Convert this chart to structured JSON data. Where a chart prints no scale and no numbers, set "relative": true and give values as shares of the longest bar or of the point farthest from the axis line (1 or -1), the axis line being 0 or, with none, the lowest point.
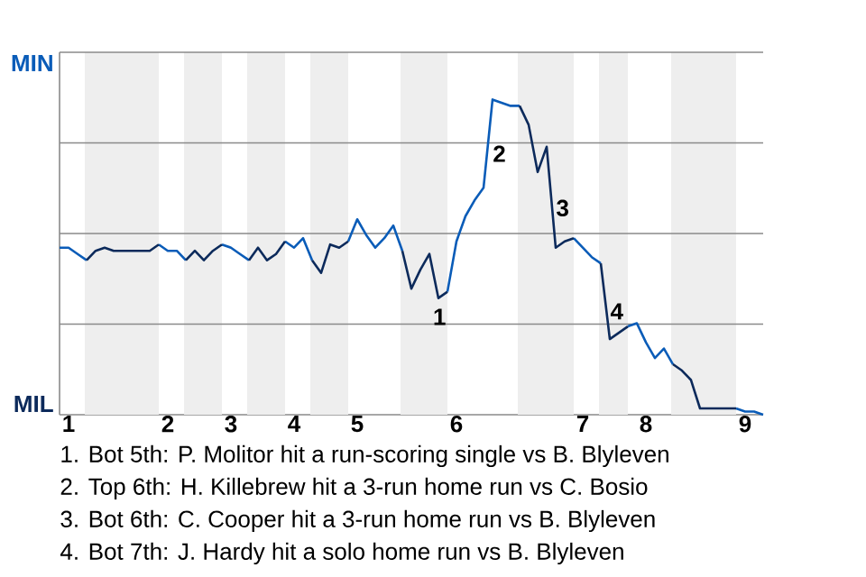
{
  "chart_data": {
    "type": "line",
    "relative": true,
    "categories": [
      null,
      "1",
      null,
      null,
      null,
      null,
      null,
      null,
      null,
      null,
      null,
      null,
      "2",
      null,
      null,
      null,
      null,
      null,
      null,
      "3",
      null,
      null,
      null,
      null,
      null,
      null,
      "4",
      null,
      null,
      null,
      null,
      null,
      null,
      "5",
      null,
      null,
      null,
      null,
      null,
      null,
      null,
      null,
      null,
      null,
      "6",
      null,
      null,
      null,
      null,
      null,
      null,
      null,
      null,
      null,
      null,
      null,
      null,
      null,
      "7",
      null,
      null,
      null,
      null,
      null,
      null,
      "8",
      null,
      null,
      null,
      null,
      null,
      null,
      null,
      null,
      null,
      null,
      "9",
      null,
      null
    ],
    "grid": "y",
    "marker": "none",
    "line_style": "solid",
    "series": [
      {
        "color": "#0a5cb8",
        "values": [
          0.53,
          0.53,
          0.51,
          0.49,
          null,
          null,
          null,
          null,
          null,
          null,
          null,
          0.54,
          0.52,
          0.52,
          0.49,
          null,
          null,
          null,
          0.54,
          0.53,
          0.51,
          0.49,
          null,
          null,
          null,
          0.55,
          0.53,
          0.56,
          0.49,
          null,
          null,
          null,
          0.55,
          0.62,
          0.57,
          0.53,
          0.56,
          0.6,
          0.52,
          null,
          null,
          null,
          null,
          0.39,
          0.55,
          0.63,
          0.68,
          0.72,
          1,
          0.99,
          0.98,
          0.98,
          null,
          null,
          null,
          null,
          null,
          0.56,
          0.53,
          0.5,
          0.48,
          null,
          null,
          0.28,
          0.29,
          0.23,
          0.18,
          0.21,
          0.16,
          null,
          null,
          null,
          null,
          null,
          null,
          0.02,
          0.01,
          0.01,
          0
        ]
      },
      {
        "color": "#0c2a5b",
        "values": [
          null,
          null,
          null,
          0.49,
          0.52,
          0.53,
          0.52,
          0.52,
          0.52,
          0.52,
          0.52,
          0.54,
          null,
          null,
          0.49,
          0.52,
          0.49,
          0.52,
          0.54,
          null,
          null,
          0.49,
          0.53,
          0.49,
          0.51,
          0.55,
          null,
          null,
          0.49,
          0.45,
          0.54,
          0.53,
          0.55,
          null,
          null,
          null,
          null,
          null,
          0.52,
          0.4,
          0.46,
          0.51,
          0.37,
          0.39,
          null,
          null,
          null,
          null,
          null,
          null,
          null,
          0.98,
          0.92,
          0.77,
          0.85,
          0.53,
          0.55,
          0.56,
          null,
          null,
          0.48,
          0.24,
          0.26,
          0.28,
          null,
          null,
          null,
          null,
          0.16,
          0.14,
          0.11,
          0.02,
          0.02,
          0.02,
          0.02,
          0.02,
          null,
          null,
          null
        ]
      }
    ],
    "annotations": [
      "MIN",
      "MIL",
      "1",
      "2",
      "3",
      "4",
      "1. Bot 5th: P. Molitor hit a run-scoring single vs B. Blyleven",
      "2. Top 6th: H. Killebrew hit a 3-run home run vs C. Bosio",
      "3. Bot 6th: C. Cooper hit a 3-run home run vs B. Blyleven",
      "4. Bot 7th: J. Hardy hit a solo home run vs B. Blyleven"
    ]
  }
}
